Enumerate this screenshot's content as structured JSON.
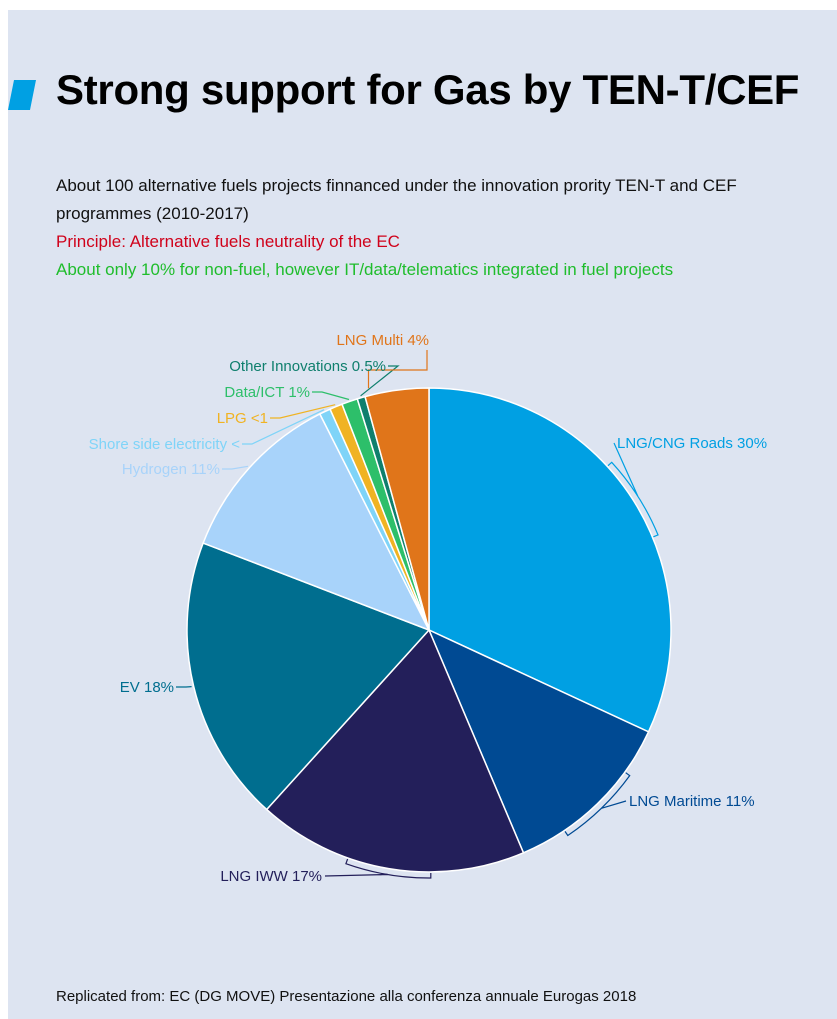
{
  "title": "Strong support for Gas by TEN-T/CEF",
  "description": {
    "line1": "About 100 alternative fuels projects finnanced under the innovation prority TEN-T and CEF programmes (2010-2017)",
    "line2": "Principle: Alternative fuels neutrality of the EC",
    "line3": "About only 10% for non-fuel, however IT/data/telematics integrated in fuel projects"
  },
  "source": "Replicated from: EC (DG MOVE) Presentazione alla conferenza annuale Eurogas 2018",
  "colors": {
    "background": "#dde4f1",
    "title_marker": "#00a0e3",
    "red_text": "#d0021b",
    "green_text": "#1fbd2c"
  },
  "chart_data": {
    "type": "pie",
    "start_angle_deg": 0,
    "direction": "clockwise",
    "slices": [
      {
        "label": "LNG/CNG Roads 30%",
        "value": 30,
        "color": "#00a0e3"
      },
      {
        "label": "LNG Maritime 11%",
        "value": 11,
        "color": "#004a93"
      },
      {
        "label": "LNG IWW 17%",
        "value": 17,
        "color": "#231f5a"
      },
      {
        "label": "EV 18%",
        "value": 18,
        "color": "#006e8f"
      },
      {
        "label": "Hydrogen 11%",
        "value": 11,
        "color": "#a8d3fa"
      },
      {
        "label": "Shore side electricity <",
        "value": 0.7,
        "color": "#7fd4f8"
      },
      {
        "label": "LPG <1",
        "value": 0.8,
        "color": "#f0b323"
      },
      {
        "label": "Data/ICT 1%",
        "value": 1,
        "color": "#2dbf6a"
      },
      {
        "label": "Other Innovations 0.5%",
        "value": 0.5,
        "color": "#0f7f6d"
      },
      {
        "label": "LNG Multi 4%",
        "value": 4,
        "color": "#e0751a"
      }
    ]
  }
}
